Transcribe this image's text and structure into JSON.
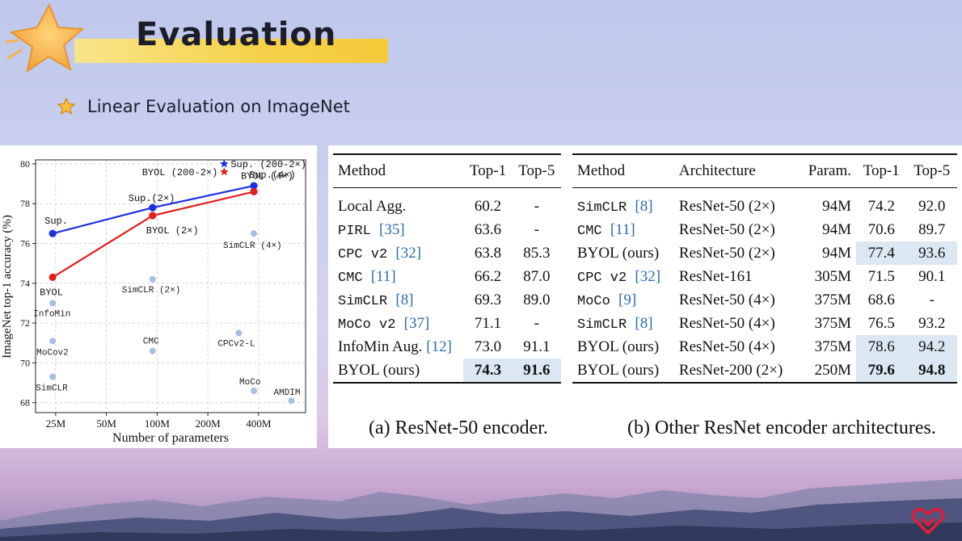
{
  "header": {
    "title": "Evaluation",
    "subtitle": "Linear Evaluation on ImageNet"
  },
  "colors": {
    "accent_yellow": "#f6d24a",
    "star_orange": "#f4b34a",
    "series_blue": "#1f2fe0",
    "series_red": "#e01f1f",
    "table_highlight": "#dbe8f4",
    "logo_red": "#d4213d"
  },
  "chart_data": {
    "type": "scatter",
    "xlabel": "Number of parameters",
    "ylabel": "ImageNet top-1 accuracy (%)",
    "x_scale": "log",
    "x_ticks": [
      {
        "value": 25,
        "label": "25M"
      },
      {
        "value": 50,
        "label": "50M"
      },
      {
        "value": 100,
        "label": "100M"
      },
      {
        "value": 200,
        "label": "200M"
      },
      {
        "value": 400,
        "label": "400M"
      }
    ],
    "y_ticks": [
      68,
      70,
      72,
      74,
      76,
      78,
      80
    ],
    "ylim": [
      67.5,
      80.2
    ],
    "grid": true,
    "series": [
      {
        "name": "Sup.",
        "color": "#1f2fe0",
        "points": [
          {
            "x": 24,
            "y": 76.5
          },
          {
            "x": 94,
            "y": 77.8
          },
          {
            "x": 375,
            "y": 78.9
          }
        ]
      },
      {
        "name": "BYOL",
        "color": "#e01f1f",
        "points": [
          {
            "x": 24,
            "y": 74.3
          },
          {
            "x": 94,
            "y": 77.4
          },
          {
            "x": 375,
            "y": 78.6
          }
        ]
      }
    ],
    "stars": [
      {
        "label": "Sup. (200-2×)",
        "x": 250,
        "y": 80.0,
        "color": "#1f2fe0"
      },
      {
        "label": "BYOL (200-2×)",
        "x": 250,
        "y": 79.6,
        "color": "#e01f1f"
      }
    ],
    "labels": [
      {
        "text": "Sup.",
        "x": 24,
        "y": 76.5,
        "mono": true
      },
      {
        "text": "BYOL",
        "x": 24,
        "y": 74.3,
        "mono": true
      },
      {
        "text": "Sup.(2×)",
        "x": 94,
        "y": 77.8,
        "mono": true
      },
      {
        "text": "BYOL (2×)",
        "x": 94,
        "y": 77.4,
        "mono": true
      },
      {
        "text": "Sup.(4×)",
        "x": 375,
        "y": 78.9,
        "mono": true
      },
      {
        "text": "BYOL (4×)",
        "x": 375,
        "y": 78.6,
        "mono": true
      }
    ],
    "others": [
      {
        "label": "InfoMin",
        "x": 24,
        "y": 73.0
      },
      {
        "label": "MoCov2",
        "x": 24,
        "y": 71.1
      },
      {
        "label": "SimCLR",
        "x": 24,
        "y": 69.3
      },
      {
        "label": "SimCLR (2×)",
        "x": 94,
        "y": 74.2
      },
      {
        "label": "CMC",
        "x": 94,
        "y": 70.6
      },
      {
        "label": "SimCLR (4×)",
        "x": 375,
        "y": 76.5
      },
      {
        "label": "CPCv2-L",
        "x": 305,
        "y": 71.5
      },
      {
        "label": "MoCo",
        "x": 375,
        "y": 68.6
      },
      {
        "label": "AMDIM",
        "x": 626,
        "y": 68.1
      }
    ]
  },
  "table_a": {
    "columns": [
      "Method",
      "Top-1",
      "Top-5"
    ],
    "rows": [
      {
        "method": "Local Agg.",
        "ref": "",
        "top1": "60.2",
        "top5": "-"
      },
      {
        "method": "PIRL ",
        "ref": "[35]",
        "top1": "63.6",
        "top5": "-"
      },
      {
        "method": "CPC v2 ",
        "ref": "[32]",
        "top1": "63.8",
        "top5": "85.3"
      },
      {
        "method": "CMC ",
        "ref": "[11]",
        "top1": "66.2",
        "top5": "87.0"
      },
      {
        "method": "SimCLR ",
        "ref": "[8]",
        "top1": "69.3",
        "top5": "89.0"
      },
      {
        "method": "MoCo v2 ",
        "ref": "[37]",
        "top1": "71.1",
        "top5": "-"
      },
      {
        "method": "InfoMin Aug. ",
        "ref": "[12]",
        "top1": "73.0",
        "top5": "91.1"
      },
      {
        "method": "BYOL (ours)",
        "ref": "",
        "top1": "74.3",
        "top5": "91.6"
      }
    ],
    "caption": "(a) ResNet-50 encoder."
  },
  "table_b": {
    "columns": [
      "Method",
      "Architecture",
      "Param.",
      "Top-1",
      "Top-5"
    ],
    "rows": [
      {
        "method": "SimCLR ",
        "ref": "[8]",
        "arch": "ResNet-50 (2×)",
        "param": "94M",
        "top1": "74.2",
        "top5": "92.0"
      },
      {
        "method": "CMC ",
        "ref": "[11]",
        "arch": "ResNet-50 (2×)",
        "param": "94M",
        "top1": "70.6",
        "top5": "89.7"
      },
      {
        "method": "BYOL (ours)",
        "ref": "",
        "arch": "ResNet-50 (2×)",
        "param": "94M",
        "top1": "77.4",
        "top5": "93.6"
      },
      {
        "method": "CPC v2 ",
        "ref": "[32]",
        "arch": "ResNet-161",
        "param": "305M",
        "top1": "71.5",
        "top5": "90.1"
      },
      {
        "method": "MoCo ",
        "ref": "[9]",
        "arch": "ResNet-50 (4×)",
        "param": "375M",
        "top1": "68.6",
        "top5": "-"
      },
      {
        "method": "SimCLR ",
        "ref": "[8]",
        "arch": "ResNet-50 (4×)",
        "param": "375M",
        "top1": "76.5",
        "top5": "93.2"
      },
      {
        "method": "BYOL (ours)",
        "ref": "",
        "arch": "ResNet-50 (4×)",
        "param": "375M",
        "top1": "78.6",
        "top5": "94.2"
      },
      {
        "method": "BYOL (ours)",
        "ref": "",
        "arch": "ResNet-200 (2×)",
        "param": "250M",
        "top1": "79.6",
        "top5": "94.8"
      }
    ],
    "caption": "(b) Other ResNet encoder architectures."
  }
}
